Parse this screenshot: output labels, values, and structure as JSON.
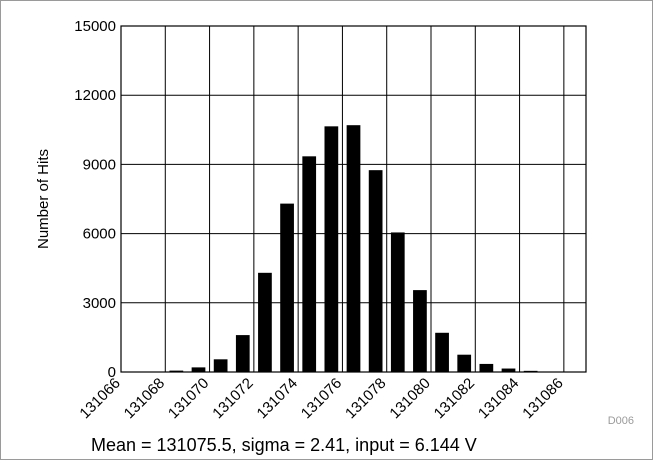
{
  "chart_data": {
    "type": "bar",
    "title": "",
    "xlabel": "",
    "ylabel": "Number of Hits",
    "ylim": [
      0,
      15000
    ],
    "yticks": [
      0,
      3000,
      6000,
      9000,
      12000,
      15000
    ],
    "xlim": [
      131066,
      131087
    ],
    "xticks": [
      131066,
      131068,
      131070,
      131072,
      131074,
      131076,
      131078,
      131080,
      131082,
      131084,
      131086
    ],
    "grid": true,
    "bar_color": "#000000",
    "categories": [
      131066,
      131067,
      131068,
      131069,
      131070,
      131071,
      131072,
      131073,
      131074,
      131075,
      131076,
      131077,
      131078,
      131079,
      131080,
      131081,
      131082,
      131083,
      131084,
      131085,
      131086
    ],
    "values": [
      5,
      15,
      60,
      200,
      550,
      1600,
      4300,
      7300,
      9350,
      10650,
      10700,
      8750,
      6050,
      3550,
      1700,
      750,
      350,
      150,
      50,
      15,
      5
    ],
    "code": "D006",
    "caption": "Mean = 131075.5, sigma = 2.41, input = 6.144 V"
  }
}
